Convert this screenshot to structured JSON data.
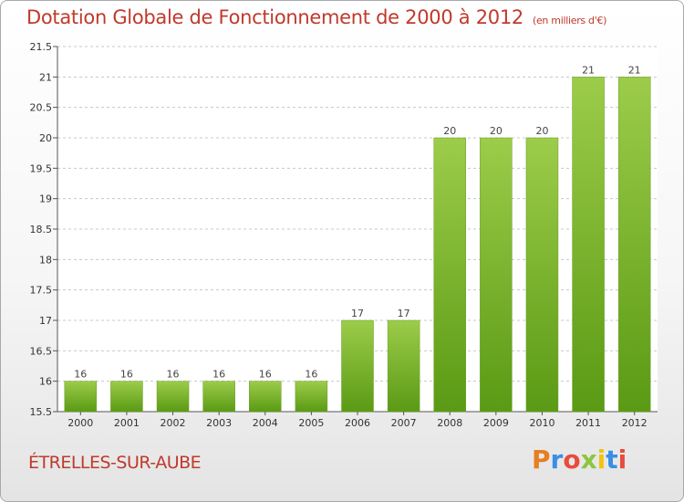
{
  "header": {
    "title": "Dotation Globale de Fonctionnement de 2000 à 2012",
    "subtitle": "(en milliers d'€)"
  },
  "footer": {
    "commune": "ÉTRELLES-SUR-AUBE",
    "logo_text": "Proxiti"
  },
  "colors": {
    "title": "#c0392b",
    "bar_top": "#9ccc4a",
    "bar_bottom": "#5a9a14",
    "grid": "#c8c8c8"
  },
  "chart_data": {
    "type": "bar",
    "title": "Dotation Globale de Fonctionnement de 2000 à 2012",
    "subtitle": "(en milliers d'€)",
    "xlabel": "",
    "ylabel": "",
    "categories": [
      "2000",
      "2001",
      "2002",
      "2003",
      "2004",
      "2005",
      "2006",
      "2007",
      "2008",
      "2009",
      "2010",
      "2011",
      "2012"
    ],
    "values": [
      16,
      16,
      16,
      16,
      16,
      16,
      17,
      17,
      20,
      20,
      20,
      21,
      21
    ],
    "ylim": [
      15.5,
      21.5
    ],
    "yticks": [
      15.5,
      16,
      16.5,
      17,
      17.5,
      18,
      18.5,
      19,
      19.5,
      20,
      20.5,
      21,
      21.5
    ],
    "grid": "horizontal dashed",
    "legend": "none"
  }
}
